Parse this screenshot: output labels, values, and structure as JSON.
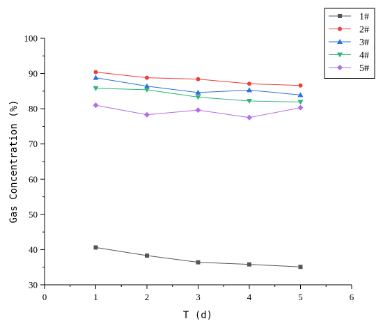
{
  "chart_data": {
    "type": "line",
    "title": "",
    "xlabel": "T (d)",
    "ylabel": "Gas Concentration (%)",
    "xlim": [
      0,
      6
    ],
    "ylim": [
      30,
      100
    ],
    "x_ticks": [
      0,
      1,
      2,
      3,
      4,
      5,
      6
    ],
    "y_ticks": [
      30,
      40,
      50,
      60,
      70,
      80,
      90,
      100
    ],
    "x": [
      1,
      2,
      3,
      4,
      5
    ],
    "grid": false,
    "legend_position": "top-right",
    "series": [
      {
        "name": "1#",
        "values": [
          40.6,
          38.3,
          36.4,
          35.8,
          35.1
        ],
        "color": "#555555",
        "marker": "square"
      },
      {
        "name": "2#",
        "values": [
          90.4,
          88.8,
          88.4,
          87.1,
          86.6
        ],
        "color": "#ef3b3b",
        "marker": "circle"
      },
      {
        "name": "3#",
        "values": [
          88.8,
          86.4,
          84.6,
          85.3,
          83.9
        ],
        "color": "#2a6fe0",
        "marker": "triangle-up"
      },
      {
        "name": "4#",
        "values": [
          85.8,
          85.4,
          83.3,
          82.2,
          81.9
        ],
        "color": "#2bb673",
        "marker": "triangle-down"
      },
      {
        "name": "5#",
        "values": [
          81.0,
          78.3,
          79.6,
          77.5,
          80.3
        ],
        "color": "#b36be6",
        "marker": "diamond"
      }
    ]
  }
}
